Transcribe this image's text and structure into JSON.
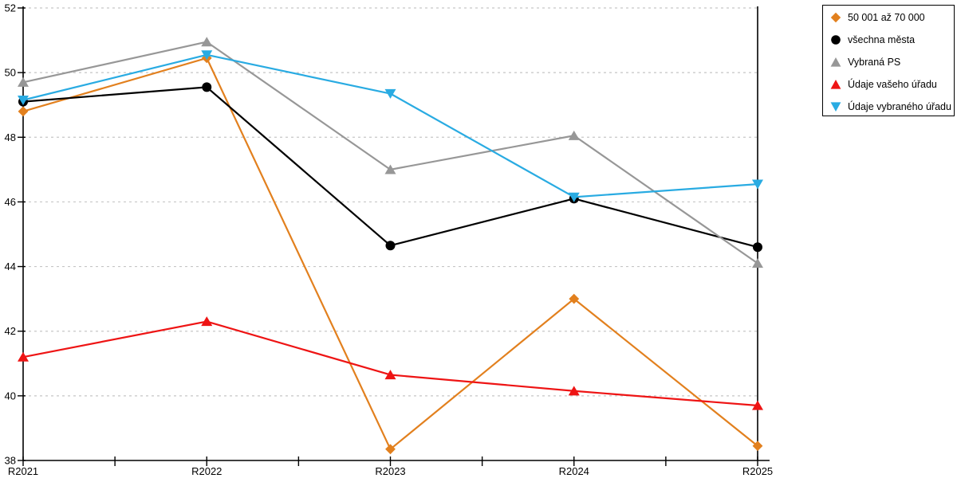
{
  "chart_data": {
    "type": "line",
    "title": "",
    "xlabel": "",
    "ylabel": "",
    "x_categories": [
      "R2021",
      "R2022",
      "R2023",
      "R2024",
      "R2025"
    ],
    "y_ticks": [
      38,
      40,
      42,
      44,
      46,
      48,
      50,
      52
    ],
    "ylim": [
      38,
      52
    ],
    "grid": "horizontal-dashed",
    "gridline_color": "#C6C6C6",
    "axis_color": "#000000",
    "legend_position": "top-right-outside",
    "series": [
      {
        "name": "50 001 až 70 000",
        "color": "#E2801E",
        "marker": "diamond",
        "values": [
          48.8,
          50.45,
          38.35,
          43.0,
          38.45
        ]
      },
      {
        "name": "všechna města",
        "color": "#000000",
        "marker": "circle",
        "values": [
          49.1,
          49.55,
          44.65,
          46.1,
          44.6
        ]
      },
      {
        "name": "Vybraná PS",
        "color": "#979797",
        "marker": "triangle-up",
        "values": [
          49.7,
          50.95,
          47.0,
          48.05,
          44.1
        ]
      },
      {
        "name": "Údaje vašeho úřadu",
        "color": "#EE1414",
        "marker": "triangle-up",
        "values": [
          41.2,
          42.3,
          40.65,
          40.15,
          39.7
        ]
      },
      {
        "name": "Údaje vybraného úřadu",
        "color": "#29ABE2",
        "marker": "triangle-down",
        "values": [
          49.15,
          50.55,
          49.35,
          46.15,
          46.55
        ]
      }
    ]
  }
}
